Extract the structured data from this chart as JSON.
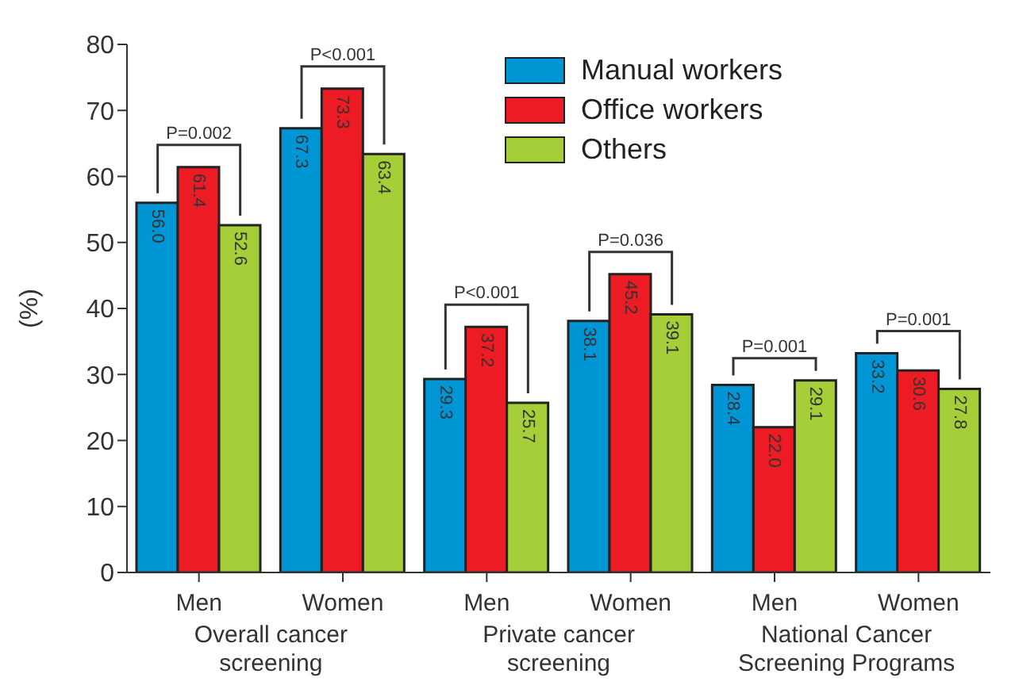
{
  "chart_data": {
    "type": "bar",
    "ylabel": "(%)",
    "categories": [
      "Men",
      "Women",
      "Men",
      "Women",
      "Men",
      "Women"
    ],
    "series": [
      {
        "name": "Manual workers",
        "color": "#0096d6",
        "values": [
          56.0,
          67.3,
          29.3,
          38.1,
          28.4,
          33.2
        ],
        "value_labels": [
          "56.0",
          "67.3",
          "29.3",
          "38.1",
          "28.4",
          "33.2"
        ]
      },
      {
        "name": "Office workers",
        "color": "#ed1c24",
        "values": [
          61.4,
          73.3,
          37.2,
          45.2,
          22.0,
          30.6
        ],
        "value_labels": [
          "61.4",
          "73.3",
          "37.2",
          "45.2",
          "22.0",
          "30.6"
        ]
      },
      {
        "name": "Others",
        "color": "#a6ce39",
        "values": [
          52.6,
          63.4,
          25.7,
          39.1,
          29.1,
          27.8
        ],
        "value_labels": [
          "52.6",
          "63.4",
          "25.7",
          "39.1",
          "29.1",
          "27.8"
        ]
      }
    ],
    "annotations": [
      "P=0.002",
      "P<0.001",
      "P<0.001",
      "P=0.036",
      "P=0.001",
      "P=0.001",
      "Overall cancer screening",
      "Private cancer screening",
      "National Cancer Screening Programs"
    ],
    "ylim": [
      0,
      80
    ],
    "yticks": [
      0,
      10,
      20,
      30,
      40,
      50,
      60,
      70,
      80
    ],
    "legend": "top right"
  }
}
